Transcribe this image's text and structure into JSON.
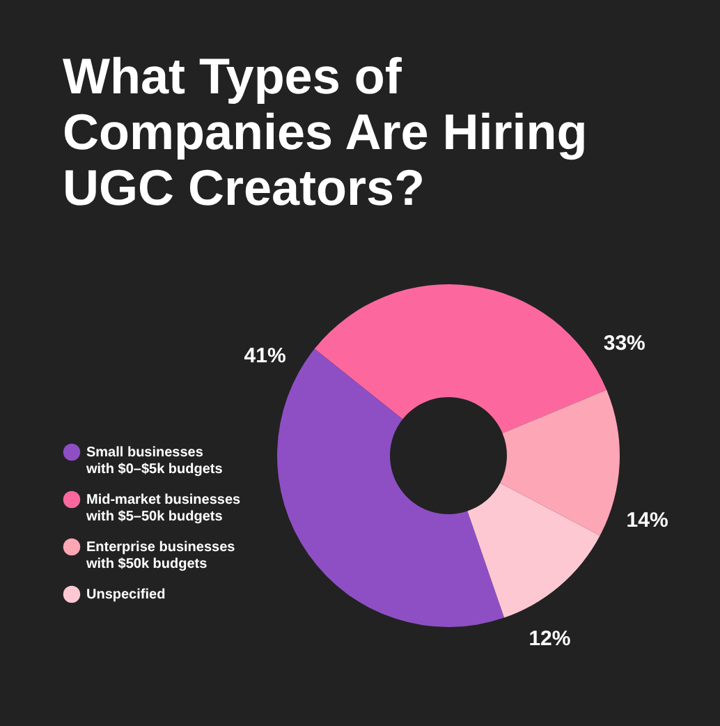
{
  "chart_data": {
    "type": "donut",
    "title": "What Types of\nCompanies Are Hiring\nUGC Creators?",
    "categories": [
      "Small businesses\nwith $0–$5k budgets",
      "Mid-market businesses\nwith $5–50k budgets",
      "Enterprise businesses\nwith $50k budgets",
      "Unspecified"
    ],
    "values": [
      41,
      33,
      14,
      12
    ],
    "colors": [
      "#8e4fc4",
      "#fc689e",
      "#fda6b6",
      "#fec8d3"
    ],
    "value_labels": [
      "41%",
      "33%",
      "14%",
      "12%"
    ],
    "legend": "left"
  }
}
